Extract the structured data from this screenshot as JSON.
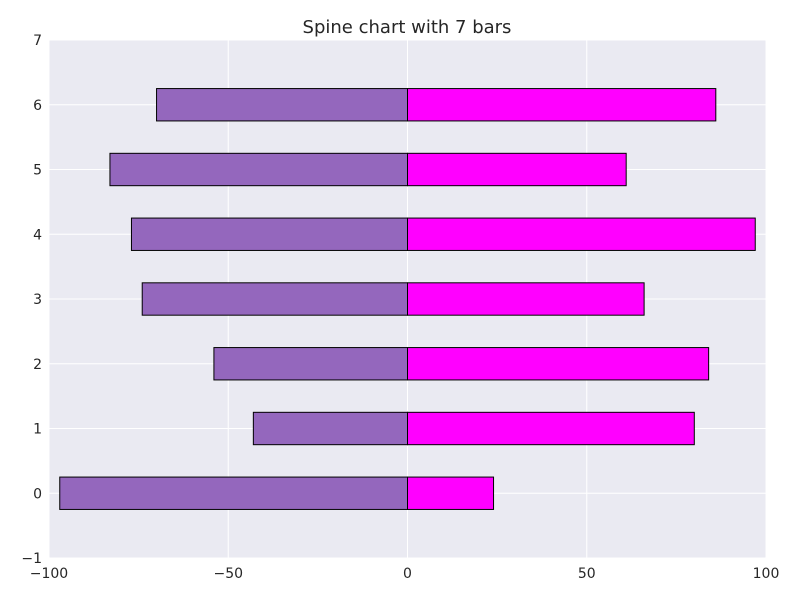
{
  "chart_data": {
    "type": "bar",
    "orientation": "horizontal",
    "title": "Spine chart with 7 bars",
    "xlabel": "",
    "ylabel": "",
    "categories": [
      0,
      1,
      2,
      3,
      4,
      5,
      6
    ],
    "series": [
      {
        "values": [
          -97,
          -43,
          -54,
          -74,
          -77,
          -83,
          -70
        ],
        "color": "#9467bd"
      },
      {
        "values": [
          24,
          80,
          84,
          66,
          97,
          61,
          86
        ],
        "color": "#ff00ff"
      }
    ],
    "xlim": [
      -100,
      100
    ],
    "ylim": [
      -1,
      7
    ],
    "xticks": [
      -100,
      -50,
      0,
      50,
      100
    ],
    "xtick_labels": [
      "−100",
      "−50",
      "0",
      "50",
      "100"
    ],
    "yticks": [
      -1,
      0,
      1,
      2,
      3,
      4,
      5,
      6,
      7
    ],
    "ytick_labels": [
      "−1",
      "0",
      "1",
      "2",
      "3",
      "4",
      "5",
      "6",
      "7"
    ],
    "grid": true,
    "background": "#eaeaf2",
    "grid_color": "#ffffff",
    "bar_edge_color": "#000000"
  }
}
